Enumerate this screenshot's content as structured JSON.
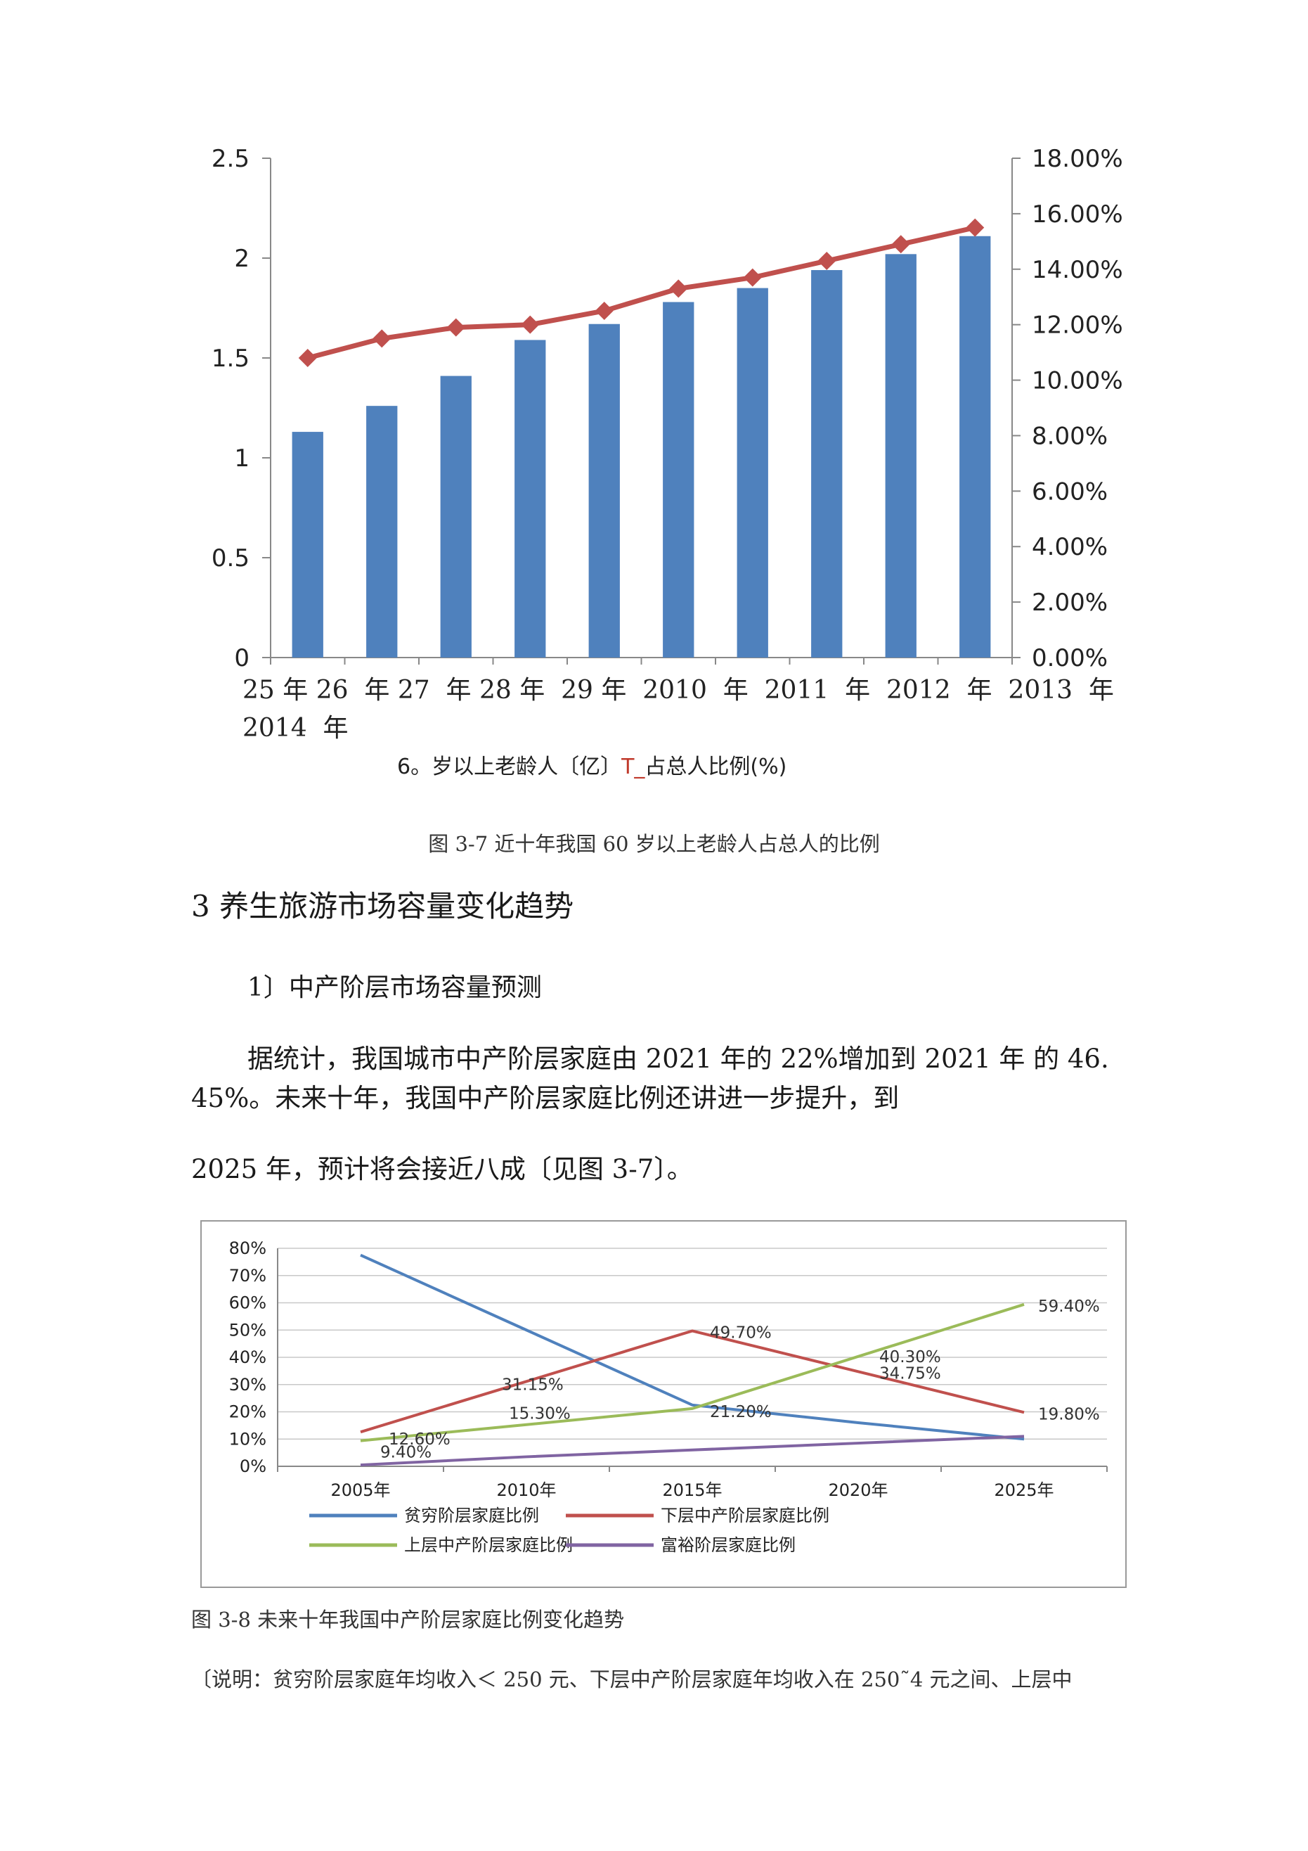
{
  "chart1": {
    "chart_data": {
      "type": "bar+line",
      "categories": [
        "25 年",
        "26 年",
        "27 年",
        "28 年",
        "29 年",
        "2010 年",
        "2011 年",
        "2012 年",
        "2013 年",
        "2014 年"
      ],
      "series": [
        {
          "name": "6。岁以上老龄人〔亿〕",
          "type": "bar",
          "axis": "left",
          "color": "#4f81bd",
          "values": [
            1.13,
            1.26,
            1.41,
            1.59,
            1.67,
            1.78,
            1.85,
            1.94,
            2.02,
            2.11
          ]
        },
        {
          "name": "占总人比例(%)",
          "type": "line",
          "axis": "right",
          "color": "#c0504d",
          "values": [
            10.8,
            11.5,
            11.9,
            12.0,
            12.5,
            13.3,
            13.7,
            14.3,
            14.9,
            15.5
          ]
        }
      ],
      "left_axis": {
        "min": 0,
        "max": 2.5,
        "ticks": [
          "0",
          "0.5",
          "1",
          "1.5",
          "2",
          "2.5"
        ]
      },
      "right_axis": {
        "min": 0,
        "max": 18,
        "ticks": [
          "0.00%",
          "2.00%",
          "4.00%",
          "6.00%",
          "8.00%",
          "10.00%",
          "12.00%",
          "14.00%",
          "16.00%",
          "18.00%"
        ]
      }
    },
    "xcats_line1": "25 年 26  年 27  年 28 年  29 年  2010  年  2011  年  2012  年  2013  年",
    "xcats_line2": "2014  年",
    "legend_text1": "6。岁以上老龄人〔亿〕",
    "legend_marker": "T_",
    "legend_text2": "占总人比例(%)"
  },
  "caption1": "图 3-7 近十年我国 60 岁以上老龄人占总人的比例",
  "section_heading": "3 养生旅游市场容量变化趋势",
  "subheading": "1〕中产阶层市场容量预测",
  "paragraph1": "据统计，我国城市中产阶层家庭由 2021 年的 22%增加到 2021 年 的 46. 45%。未来十年，我国中产阶层家庭比例还讲进一步提升，到",
  "paragraph2": "2025 年，预计将会接近八成〔见图 3-7〕。",
  "chart2": {
    "chart_data": {
      "type": "line",
      "x": [
        "2005年",
        "2010年",
        "2015年",
        "2020年",
        "2025年"
      ],
      "y_ticks": [
        "0%",
        "10%",
        "20%",
        "30%",
        "40%",
        "50%",
        "60%",
        "70%",
        "80%"
      ],
      "ylim": [
        0,
        80
      ],
      "series": [
        {
          "name": "贫穷阶层家庭比例",
          "color": "#4f81bd",
          "values": [
            77.5,
            50.0,
            22.5,
            16.0,
            10.0
          ]
        },
        {
          "name": "下层中产阶层家庭比例",
          "color": "#c0504d",
          "values": [
            12.6,
            31.15,
            49.7,
            34.75,
            19.8
          ]
        },
        {
          "name": "上层中产阶层家庭比例",
          "color": "#9bbb59",
          "values": [
            9.4,
            15.3,
            21.2,
            40.3,
            59.4
          ]
        },
        {
          "name": "富裕阶层家庭比例",
          "color": "#8064a2",
          "values": [
            0.5,
            3.5,
            6.0,
            8.5,
            11.0
          ]
        }
      ],
      "data_labels": [
        "12.60%",
        "9.40%",
        "31.15%",
        "15.30%",
        "49.70%",
        "21.20%",
        "40.30%",
        "34.75%",
        "59.40%",
        "19.80%"
      ]
    }
  },
  "caption2": "图 3-8 未来十年我国中产阶层家庭比例变化趋势",
  "note": "〔说明：贫穷阶层家庭年均收入＜ 250 元、下层中产阶层家庭年均收入在 250˜4  元之间、上层中"
}
